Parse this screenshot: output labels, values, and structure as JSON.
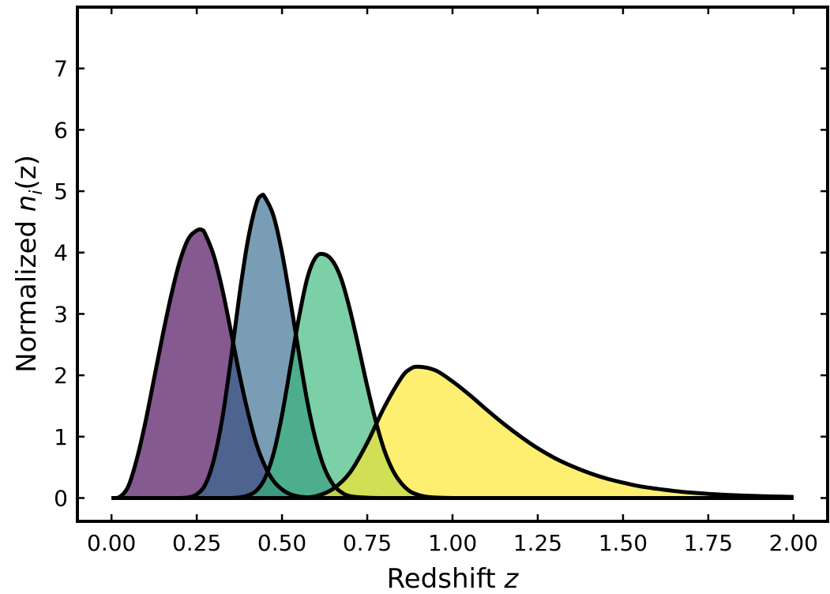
{
  "chart_data": {
    "type": "area",
    "title": "",
    "xlabel": "Redshift",
    "xlabel_var": "z",
    "ylabel": "Normalized",
    "ylabel_var": "n",
    "ylabel_sub": "i",
    "ylabel_arg": "(z)",
    "xlim": [
      -0.1,
      2.1
    ],
    "ylim": [
      -0.38,
      8.0
    ],
    "x_ticks": [
      0.0,
      0.25,
      0.5,
      0.75,
      1.0,
      1.25,
      1.5,
      1.75,
      2.0
    ],
    "x_tick_labels": [
      "0.00",
      "0.25",
      "0.50",
      "0.75",
      "1.00",
      "1.25",
      "1.50",
      "1.75",
      "2.00"
    ],
    "y_ticks": [
      0,
      1,
      2,
      3,
      4,
      5,
      6,
      7
    ],
    "y_tick_labels": [
      "0",
      "1",
      "2",
      "3",
      "4",
      "5",
      "6",
      "7"
    ],
    "grid": false,
    "legend": "none",
    "fill_opacity": 0.65,
    "series": [
      {
        "color": "#440154",
        "x": [
          0.0,
          0.025,
          0.05,
          0.075,
          0.1,
          0.125,
          0.15,
          0.175,
          0.2,
          0.225,
          0.25,
          0.265,
          0.275,
          0.3,
          0.325,
          0.35,
          0.375,
          0.4,
          0.425,
          0.45,
          0.475,
          0.5,
          0.525,
          0.55,
          0.575,
          0.6,
          0.625,
          0.65,
          0.675,
          0.7
        ],
        "values": [
          0.0,
          0.02,
          0.2,
          0.65,
          1.25,
          1.95,
          2.65,
          3.3,
          3.85,
          4.22,
          4.36,
          4.37,
          4.3,
          3.95,
          3.4,
          2.72,
          2.02,
          1.4,
          0.88,
          0.52,
          0.28,
          0.14,
          0.06,
          0.025,
          0.01,
          0.004,
          0.0,
          0.0,
          0.0,
          0.0
        ]
      },
      {
        "color": "#31688e",
        "x": [
          0.2,
          0.225,
          0.25,
          0.275,
          0.3,
          0.325,
          0.35,
          0.375,
          0.4,
          0.425,
          0.44,
          0.45,
          0.475,
          0.5,
          0.525,
          0.55,
          0.575,
          0.6,
          0.625,
          0.65,
          0.675,
          0.7,
          0.75,
          0.8
        ],
        "values": [
          0.0,
          0.01,
          0.06,
          0.22,
          0.62,
          1.3,
          2.25,
          3.3,
          4.2,
          4.8,
          4.93,
          4.9,
          4.6,
          4.0,
          3.2,
          2.35,
          1.55,
          0.92,
          0.48,
          0.22,
          0.09,
          0.03,
          0.005,
          0.0
        ]
      },
      {
        "color": "#35b779",
        "x": [
          0.35,
          0.375,
          0.4,
          0.425,
          0.45,
          0.475,
          0.5,
          0.525,
          0.55,
          0.575,
          0.6,
          0.625,
          0.65,
          0.675,
          0.7,
          0.725,
          0.75,
          0.775,
          0.8,
          0.825,
          0.85,
          0.875,
          0.9,
          0.925,
          0.95,
          1.0
        ],
        "values": [
          0.0,
          0.01,
          0.04,
          0.12,
          0.32,
          0.72,
          1.35,
          2.15,
          2.95,
          3.6,
          3.93,
          3.97,
          3.85,
          3.55,
          3.05,
          2.45,
          1.82,
          1.25,
          0.78,
          0.45,
          0.24,
          0.11,
          0.05,
          0.02,
          0.008,
          0.0
        ]
      },
      {
        "color": "#fde725",
        "x": [
          0.55,
          0.6,
          0.65,
          0.7,
          0.75,
          0.8,
          0.85,
          0.875,
          0.9,
          0.95,
          1.0,
          1.05,
          1.1,
          1.15,
          1.2,
          1.25,
          1.3,
          1.35,
          1.4,
          1.45,
          1.5,
          1.55,
          1.6,
          1.65,
          1.7,
          1.75,
          1.8,
          1.85,
          1.9,
          1.95,
          2.0
        ],
        "values": [
          0.0,
          0.03,
          0.15,
          0.42,
          0.9,
          1.48,
          1.96,
          2.1,
          2.14,
          2.08,
          1.9,
          1.68,
          1.44,
          1.21,
          1.0,
          0.81,
          0.65,
          0.52,
          0.41,
          0.32,
          0.25,
          0.19,
          0.15,
          0.115,
          0.088,
          0.068,
          0.052,
          0.04,
          0.031,
          0.024,
          0.018
        ]
      }
    ]
  }
}
